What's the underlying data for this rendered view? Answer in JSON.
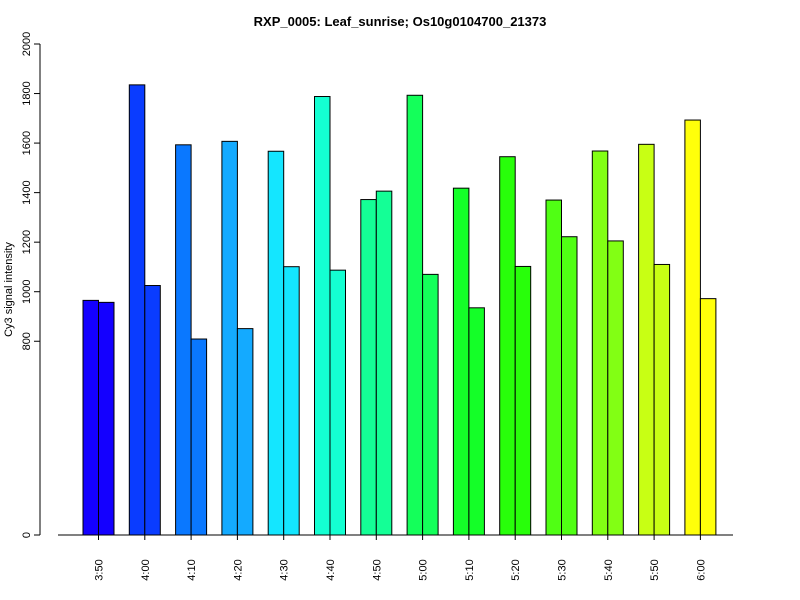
{
  "chart_data": {
    "type": "bar",
    "title": "RXP_0005: Leaf_sunrise; Os10g0104700_21373",
    "xlabel": "",
    "ylabel": "Cy3 signal intensity",
    "y_ticks": [
      0,
      800,
      1000,
      1200,
      1400,
      1600,
      1800,
      2000
    ],
    "y_axis_breakpoints": [
      {
        "value": 0,
        "frac": 0.0
      },
      {
        "value": 800,
        "frac": 0.3946
      },
      {
        "value": 2000,
        "frac": 1.0
      }
    ],
    "categories": [
      "3:50",
      "4:00",
      "4:10",
      "4:20",
      "4:30",
      "4:40",
      "4:50",
      "5:00",
      "5:10",
      "5:20",
      "5:30",
      "5:40",
      "5:50",
      "6:00"
    ],
    "colors": [
      "#1400ff",
      "#0a3cff",
      "#0a78ff",
      "#14aaff",
      "#14e6ff",
      "#14ffd2",
      "#14ff96",
      "#14ff5a",
      "#14ff28",
      "#28ff0a",
      "#50ff14",
      "#82ff14",
      "#c8ff14",
      "#ffff0a"
    ],
    "series": [
      {
        "values": [
          965,
          1835,
          1593,
          1607,
          1567,
          1788,
          1372,
          1793,
          1418,
          1545,
          1370,
          1568,
          1595,
          1693
        ]
      },
      {
        "values": [
          957,
          1025,
          809,
          851,
          1101,
          1087,
          1406,
          1070,
          935,
          1102,
          1222,
          1205,
          1110,
          972
        ]
      }
    ],
    "grid": false,
    "legend": "none"
  }
}
